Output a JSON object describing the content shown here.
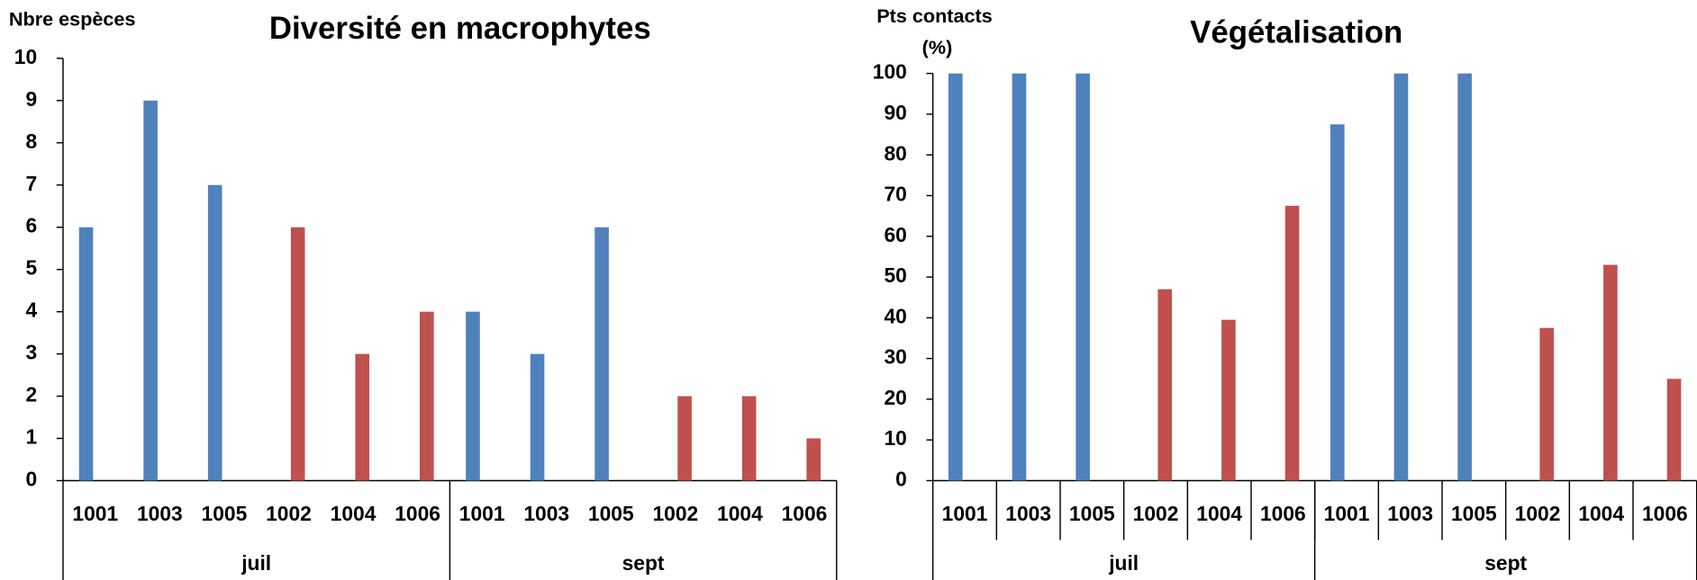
{
  "chart_data": [
    {
      "type": "bar",
      "title": "Diversité en macrophytes",
      "ylabel": [
        "Nbre espèces"
      ],
      "categories": [
        "1001",
        "1003",
        "1005",
        "1002",
        "1004",
        "1006",
        "1001",
        "1003",
        "1005",
        "1002",
        "1004",
        "1006"
      ],
      "groups": [
        "juil",
        "sept"
      ],
      "series": [
        {
          "color": "#4f81bd",
          "values": [
            6,
            9,
            7,
            null,
            null,
            null,
            4,
            3,
            6,
            null,
            null,
            null
          ]
        },
        {
          "color": "#c0504d",
          "values": [
            null,
            null,
            null,
            6,
            3,
            4,
            null,
            null,
            null,
            2,
            2,
            1
          ]
        }
      ],
      "ylim": [
        0,
        10
      ],
      "yticks": [
        0,
        1,
        2,
        3,
        4,
        5,
        6,
        7,
        8,
        9,
        10
      ],
      "category_dividers": false
    },
    {
      "type": "bar",
      "title": "Végétalisation",
      "ylabel": [
        "Pts contacts",
        "(%)"
      ],
      "categories": [
        "1001",
        "1003",
        "1005",
        "1002",
        "1004",
        "1006",
        "1001",
        "1003",
        "1005",
        "1002",
        "1004",
        "1006"
      ],
      "groups": [
        "juil",
        "sept"
      ],
      "series": [
        {
          "color": "#4f81bd",
          "values": [
            100,
            100,
            100,
            null,
            null,
            null,
            87.5,
            100,
            100,
            null,
            null,
            null
          ]
        },
        {
          "color": "#c0504d",
          "values": [
            null,
            null,
            null,
            47,
            39.5,
            67.5,
            null,
            null,
            null,
            37.5,
            53,
            25
          ]
        }
      ],
      "ylim": [
        0,
        100
      ],
      "yticks": [
        0,
        10,
        20,
        30,
        40,
        50,
        60,
        70,
        80,
        90,
        100
      ],
      "category_dividers": true
    }
  ]
}
